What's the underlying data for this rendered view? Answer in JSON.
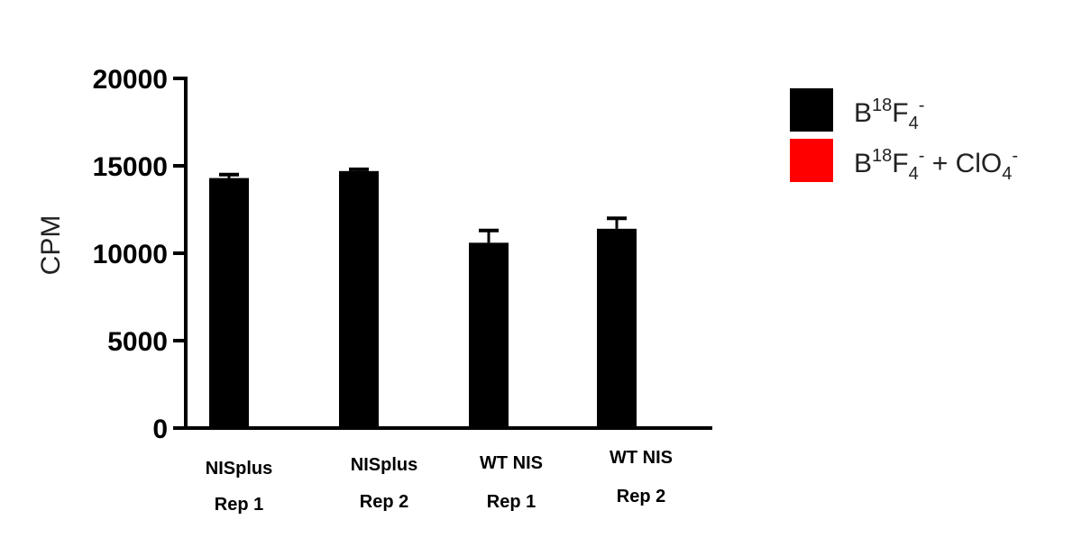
{
  "chart_data": {
    "type": "bar",
    "ylabel": "CPM",
    "ylim": [
      0,
      20000
    ],
    "yticks": [
      0,
      5000,
      10000,
      15000,
      20000
    ],
    "grid": false,
    "legend_position": "right",
    "categories": [
      {
        "line1": "NISplus",
        "line2": "Rep 1"
      },
      {
        "line1": "NISplus",
        "line2": "Rep 2"
      },
      {
        "line1": "WT NIS",
        "line2": "Rep 1"
      },
      {
        "line1": "WT NIS",
        "line2": "Rep 2"
      }
    ],
    "series": [
      {
        "legend": {
          "base": "B",
          "sup1": "18",
          "mid": "F",
          "sub1": "4",
          "sup2": "-",
          "tail": "",
          "sub2": "",
          "sup3": ""
        },
        "color": "#000000",
        "values": [
          14300,
          14700,
          10600,
          11400
        ],
        "errors": [
          200,
          100,
          700,
          600
        ]
      },
      {
        "legend": {
          "base": "B",
          "sup1": "18",
          "mid": "F",
          "sub1": "4",
          "sup2": "-",
          "tail": " + ClO",
          "sub2": "4",
          "sup3": "-"
        },
        "color": "#ff0000",
        "values": [
          null,
          null,
          null,
          null
        ],
        "errors": [
          null,
          null,
          null,
          null
        ]
      }
    ]
  }
}
